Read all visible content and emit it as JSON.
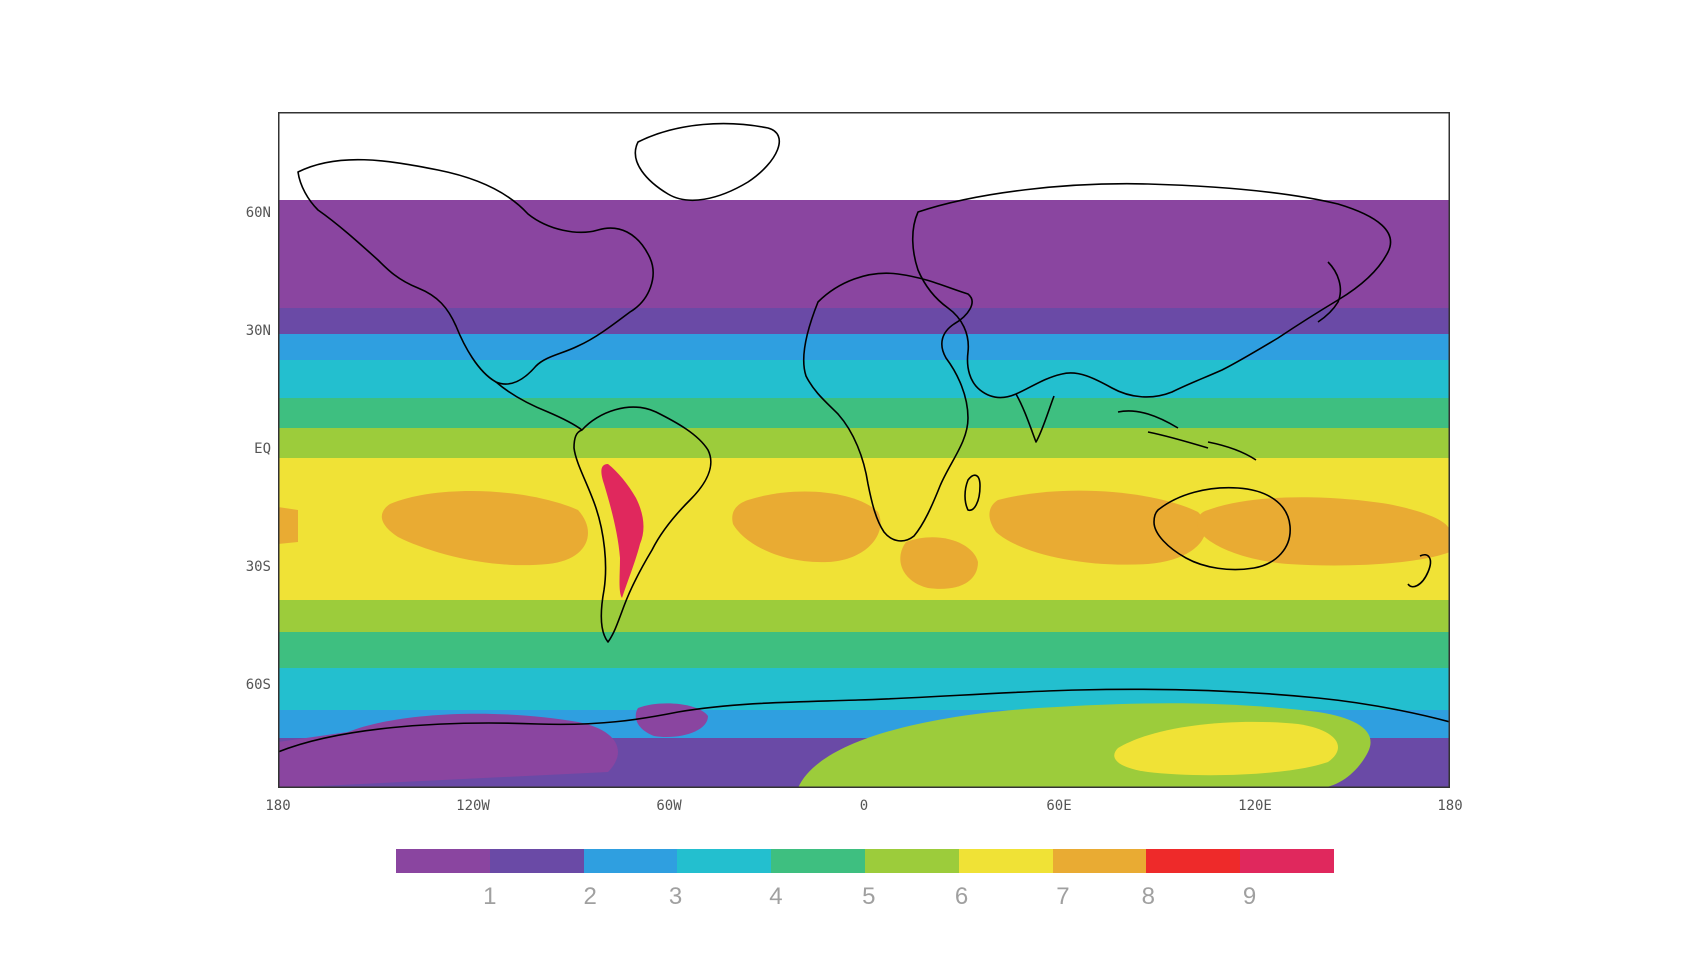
{
  "map": {
    "projection": "equirectangular",
    "lon_range": [
      -180,
      180
    ],
    "lat_range": [
      -82,
      90
    ],
    "data_lat_top": 63,
    "contour_colors": [
      "#8a45a0",
      "#6a4aa6",
      "#2f9fe0",
      "#23bfcf",
      "#3ebf80",
      "#9ccc3b",
      "#f0e236",
      "#e9ab33",
      "#ee2a2a",
      "#e0285d"
    ]
  },
  "y_labels": [
    {
      "text": "60N",
      "lat": 60
    },
    {
      "text": "30N",
      "lat": 30
    },
    {
      "text": "EQ",
      "lat": 0
    },
    {
      "text": "30S",
      "lat": -30
    },
    {
      "text": "60S",
      "lat": -60
    }
  ],
  "x_labels": [
    {
      "text": "180",
      "lon": -180
    },
    {
      "text": "120W",
      "lon": -120
    },
    {
      "text": "60W",
      "lon": -60
    },
    {
      "text": "0",
      "lon": 0
    },
    {
      "text": "60E",
      "lon": 60
    },
    {
      "text": "120E",
      "lon": 120
    },
    {
      "text": "180",
      "lon": 180
    }
  ],
  "colorbar": {
    "colors": [
      "#8a45a0",
      "#6a4aa6",
      "#2f9fe0",
      "#23bfcf",
      "#3ebf80",
      "#9ccc3b",
      "#f0e236",
      "#e9ab33",
      "#ee2a2a",
      "#e0285d"
    ],
    "labels": [
      "1",
      "2",
      "3",
      "4",
      "5",
      "6",
      "7",
      "8",
      "9"
    ]
  }
}
